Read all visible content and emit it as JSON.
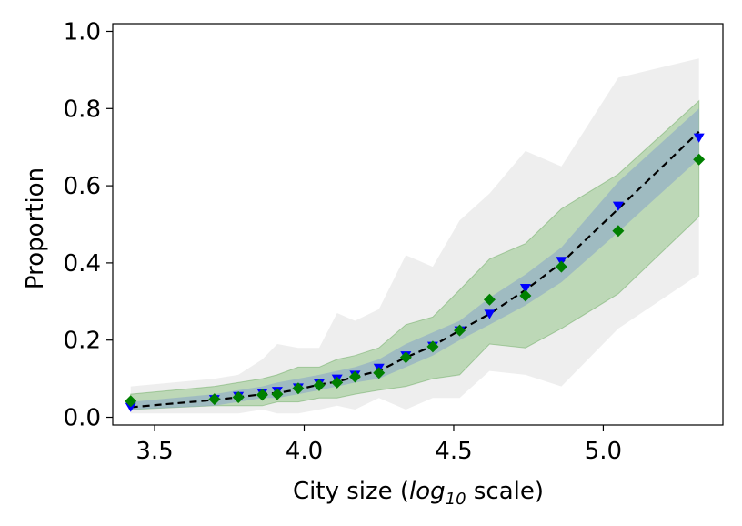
{
  "chart_data": {
    "type": "line",
    "title": "",
    "xlabel_prefix": "City size (",
    "xlabel_log": "log",
    "xlabel_sub": "10",
    "xlabel_suffix": " scale)",
    "ylabel": "Proportion",
    "xlim": [
      3.36,
      5.4
    ],
    "ylim": [
      -0.02,
      1.02
    ],
    "x_ticks": [
      3.5,
      4.0,
      4.5,
      5.0
    ],
    "x_tick_labels": [
      "3.5",
      "4.0",
      "4.5",
      "5.0"
    ],
    "y_ticks": [
      0.0,
      0.2,
      0.4,
      0.6,
      0.8,
      1.0
    ],
    "y_tick_labels": [
      "0.0",
      "0.2",
      "0.4",
      "0.6",
      "0.8",
      "1.0"
    ],
    "x": [
      3.42,
      3.7,
      3.78,
      3.86,
      3.91,
      3.98,
      4.05,
      4.11,
      4.17,
      4.25,
      4.34,
      4.43,
      4.52,
      4.62,
      4.74,
      4.86,
      5.05,
      5.32
    ],
    "grey_band": {
      "lower": [
        0.01,
        0.01,
        0.01,
        0.02,
        0.01,
        0.01,
        0.02,
        0.03,
        0.02,
        0.05,
        0.02,
        0.05,
        0.05,
        0.12,
        0.11,
        0.08,
        0.23,
        0.37
      ],
      "upper": [
        0.08,
        0.1,
        0.11,
        0.15,
        0.19,
        0.18,
        0.18,
        0.27,
        0.25,
        0.28,
        0.42,
        0.39,
        0.51,
        0.58,
        0.69,
        0.65,
        0.88,
        0.93
      ]
    },
    "green_band": {
      "lower": [
        0.02,
        0.03,
        0.03,
        0.03,
        0.04,
        0.04,
        0.05,
        0.05,
        0.06,
        0.07,
        0.08,
        0.1,
        0.11,
        0.19,
        0.18,
        0.23,
        0.32,
        0.52
      ],
      "upper": [
        0.06,
        0.08,
        0.09,
        0.1,
        0.11,
        0.13,
        0.13,
        0.15,
        0.16,
        0.18,
        0.24,
        0.26,
        0.33,
        0.41,
        0.45,
        0.54,
        0.63,
        0.82
      ]
    },
    "blue_band": {
      "lower": [
        0.02,
        0.03,
        0.04,
        0.05,
        0.05,
        0.06,
        0.07,
        0.08,
        0.09,
        0.1,
        0.13,
        0.16,
        0.2,
        0.24,
        0.29,
        0.35,
        0.48,
        0.67
      ],
      "upper": [
        0.04,
        0.06,
        0.07,
        0.08,
        0.09,
        0.1,
        0.11,
        0.12,
        0.13,
        0.15,
        0.19,
        0.22,
        0.25,
        0.31,
        0.37,
        0.44,
        0.61,
        0.8
      ]
    },
    "series": [
      {
        "name": "mean",
        "style": "dashed-line",
        "color": "#000000",
        "values": [
          0.026,
          0.045,
          0.052,
          0.06,
          0.063,
          0.072,
          0.085,
          0.092,
          0.105,
          0.12,
          0.155,
          0.185,
          0.225,
          0.268,
          0.33,
          0.4,
          0.54,
          0.74
        ]
      },
      {
        "name": "blue-triangles",
        "style": "triangle-down",
        "color": "#0000ff",
        "values": [
          0.027,
          0.047,
          0.055,
          0.063,
          0.068,
          0.077,
          0.088,
          0.1,
          0.11,
          0.128,
          0.16,
          0.185,
          0.225,
          0.268,
          0.335,
          0.405,
          0.548,
          0.725
        ]
      },
      {
        "name": "green-diamonds",
        "style": "diamond",
        "color": "#008000",
        "values": [
          0.042,
          0.047,
          0.052,
          0.058,
          0.06,
          0.075,
          0.083,
          0.09,
          0.105,
          0.115,
          0.155,
          0.183,
          0.225,
          0.305,
          0.315,
          0.39,
          0.483,
          0.668
        ]
      }
    ],
    "colors": {
      "grey_band": "#d9d9d9",
      "green_band": "#a3cc9a",
      "blue_band": "#8aa8c8"
    }
  }
}
